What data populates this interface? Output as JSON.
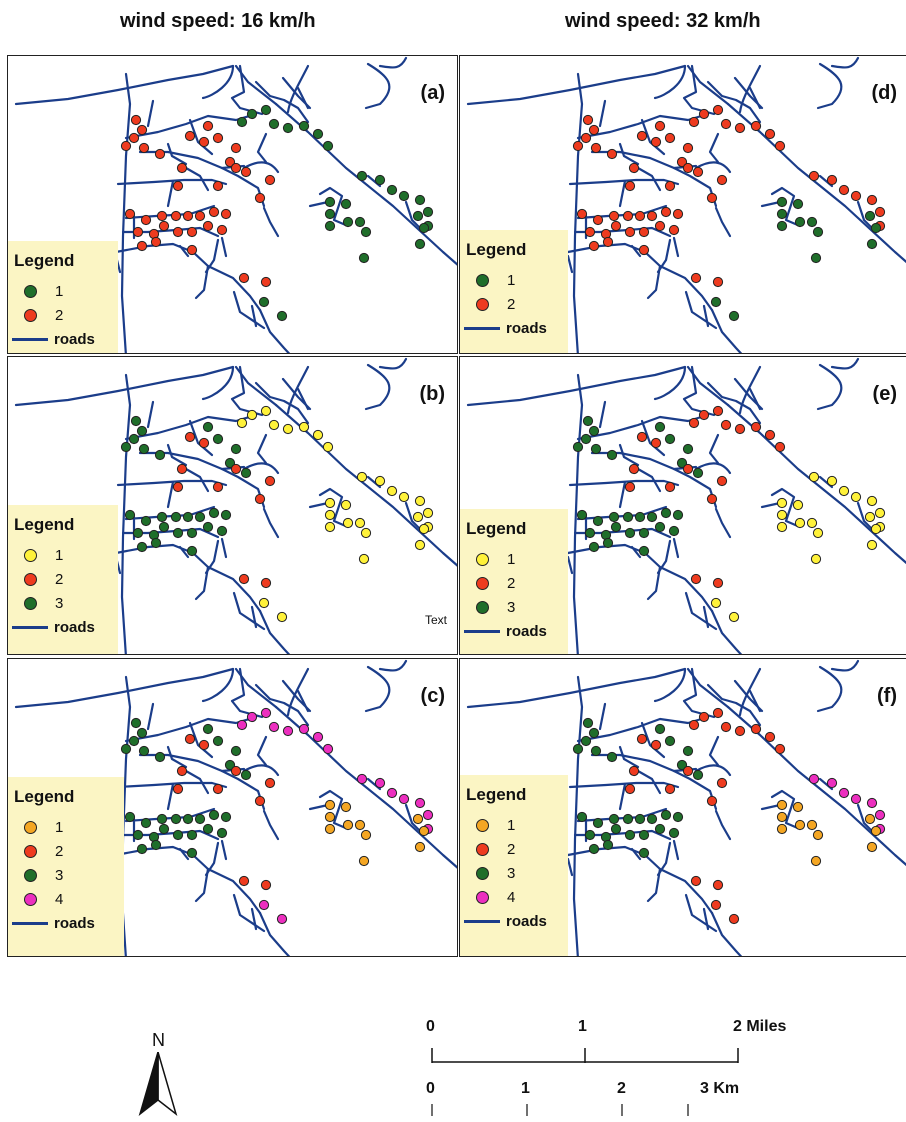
{
  "titles": {
    "left": "wind speed: 16 km/h",
    "right": "wind speed: 32 km/h"
  },
  "colors": {
    "green": "#1f6e2a",
    "red": "#ee3b1f",
    "yellow": "#fff23a",
    "orange": "#f4a623",
    "magenta": "#ec2fbf",
    "roads": "#1b3d8a",
    "legend_bg": "#fbf5c4"
  },
  "panels": [
    {
      "label": "(a)",
      "legend": {
        "title": "Legend",
        "items": [
          {
            "label": "1",
            "color": "#1f6e2a"
          },
          {
            "label": "2",
            "color": "#ee3b1f"
          }
        ],
        "roads_label": "roads"
      },
      "assign": {
        "NW": "#ee3b1f",
        "NE": "#1f6e2a",
        "E": "#1f6e2a",
        "C": "#ee3b1f",
        "W": "#ee3b1f",
        "S": "#ee3b1f",
        "SS": "#1f6e2a",
        "EE": "#1f6e2a"
      },
      "extra_text": ""
    },
    {
      "label": "(b)",
      "legend": {
        "title": "Legend",
        "items": [
          {
            "label": "1",
            "color": "#fff23a"
          },
          {
            "label": "2",
            "color": "#ee3b1f"
          },
          {
            "label": "3",
            "color": "#1f6e2a"
          }
        ],
        "roads_label": "roads"
      },
      "assign": {
        "NW": "#1f6e2a",
        "NE": "#fff23a",
        "E": "#fff23a",
        "C": "#ee3b1f",
        "W": "#1f6e2a",
        "S": "#ee3b1f",
        "SS": "#fff23a",
        "EE": "#fff23a"
      },
      "extra_text": "Text"
    },
    {
      "label": "(c)",
      "legend": {
        "title": "Legend",
        "items": [
          {
            "label": "1",
            "color": "#f4a623"
          },
          {
            "label": "2",
            "color": "#ee3b1f"
          },
          {
            "label": "3",
            "color": "#1f6e2a"
          },
          {
            "label": "4",
            "color": "#ec2fbf"
          }
        ],
        "roads_label": "roads"
      },
      "assign": {
        "NW": "#1f6e2a",
        "NE": "#ec2fbf",
        "E": "#ec2fbf",
        "C": "#ee3b1f",
        "W": "#1f6e2a",
        "S": "#ee3b1f",
        "SS": "#ec2fbf",
        "EE": "#f4a623"
      },
      "extra_text": ""
    },
    {
      "label": "(d)",
      "legend": {
        "title": "Legend",
        "items": [
          {
            "label": "1",
            "color": "#1f6e2a"
          },
          {
            "label": "2",
            "color": "#ee3b1f"
          }
        ],
        "roads_label": "roads"
      },
      "assign": {
        "NW": "#ee3b1f",
        "NE": "#ee3b1f",
        "E": "#ee3b1f",
        "C": "#ee3b1f",
        "W": "#ee3b1f",
        "S": "#ee3b1f",
        "SS": "#1f6e2a",
        "EE": "#1f6e2a"
      },
      "extra_text": ""
    },
    {
      "label": "(e)",
      "legend": {
        "title": "Legend",
        "items": [
          {
            "label": "1",
            "color": "#fff23a"
          },
          {
            "label": "2",
            "color": "#ee3b1f"
          },
          {
            "label": "3",
            "color": "#1f6e2a"
          }
        ],
        "roads_label": "roads"
      },
      "assign": {
        "NW": "#1f6e2a",
        "NE": "#ee3b1f",
        "E": "#fff23a",
        "C": "#ee3b1f",
        "W": "#1f6e2a",
        "S": "#ee3b1f",
        "SS": "#fff23a",
        "EE": "#fff23a"
      },
      "extra_text": ""
    },
    {
      "label": "(f)",
      "legend": {
        "title": "Legend",
        "items": [
          {
            "label": "1",
            "color": "#f4a623"
          },
          {
            "label": "2",
            "color": "#ee3b1f"
          },
          {
            "label": "3",
            "color": "#1f6e2a"
          },
          {
            "label": "4",
            "color": "#ec2fbf"
          }
        ],
        "roads_label": "roads"
      },
      "assign": {
        "NW": "#1f6e2a",
        "NE": "#ee3b1f",
        "E": "#ec2fbf",
        "C": "#ee3b1f",
        "W": "#1f6e2a",
        "S": "#ee3b1f",
        "SS": "#ee3b1f",
        "EE": "#f4a623"
      },
      "extra_text": ""
    }
  ],
  "north_arrow": {
    "label": "N"
  },
  "scale_bar": {
    "miles": {
      "ticks": [
        "0",
        "1",
        "2 Miles"
      ]
    },
    "km": {
      "ticks": [
        "0",
        "1",
        "2",
        "3 Km"
      ]
    }
  }
}
